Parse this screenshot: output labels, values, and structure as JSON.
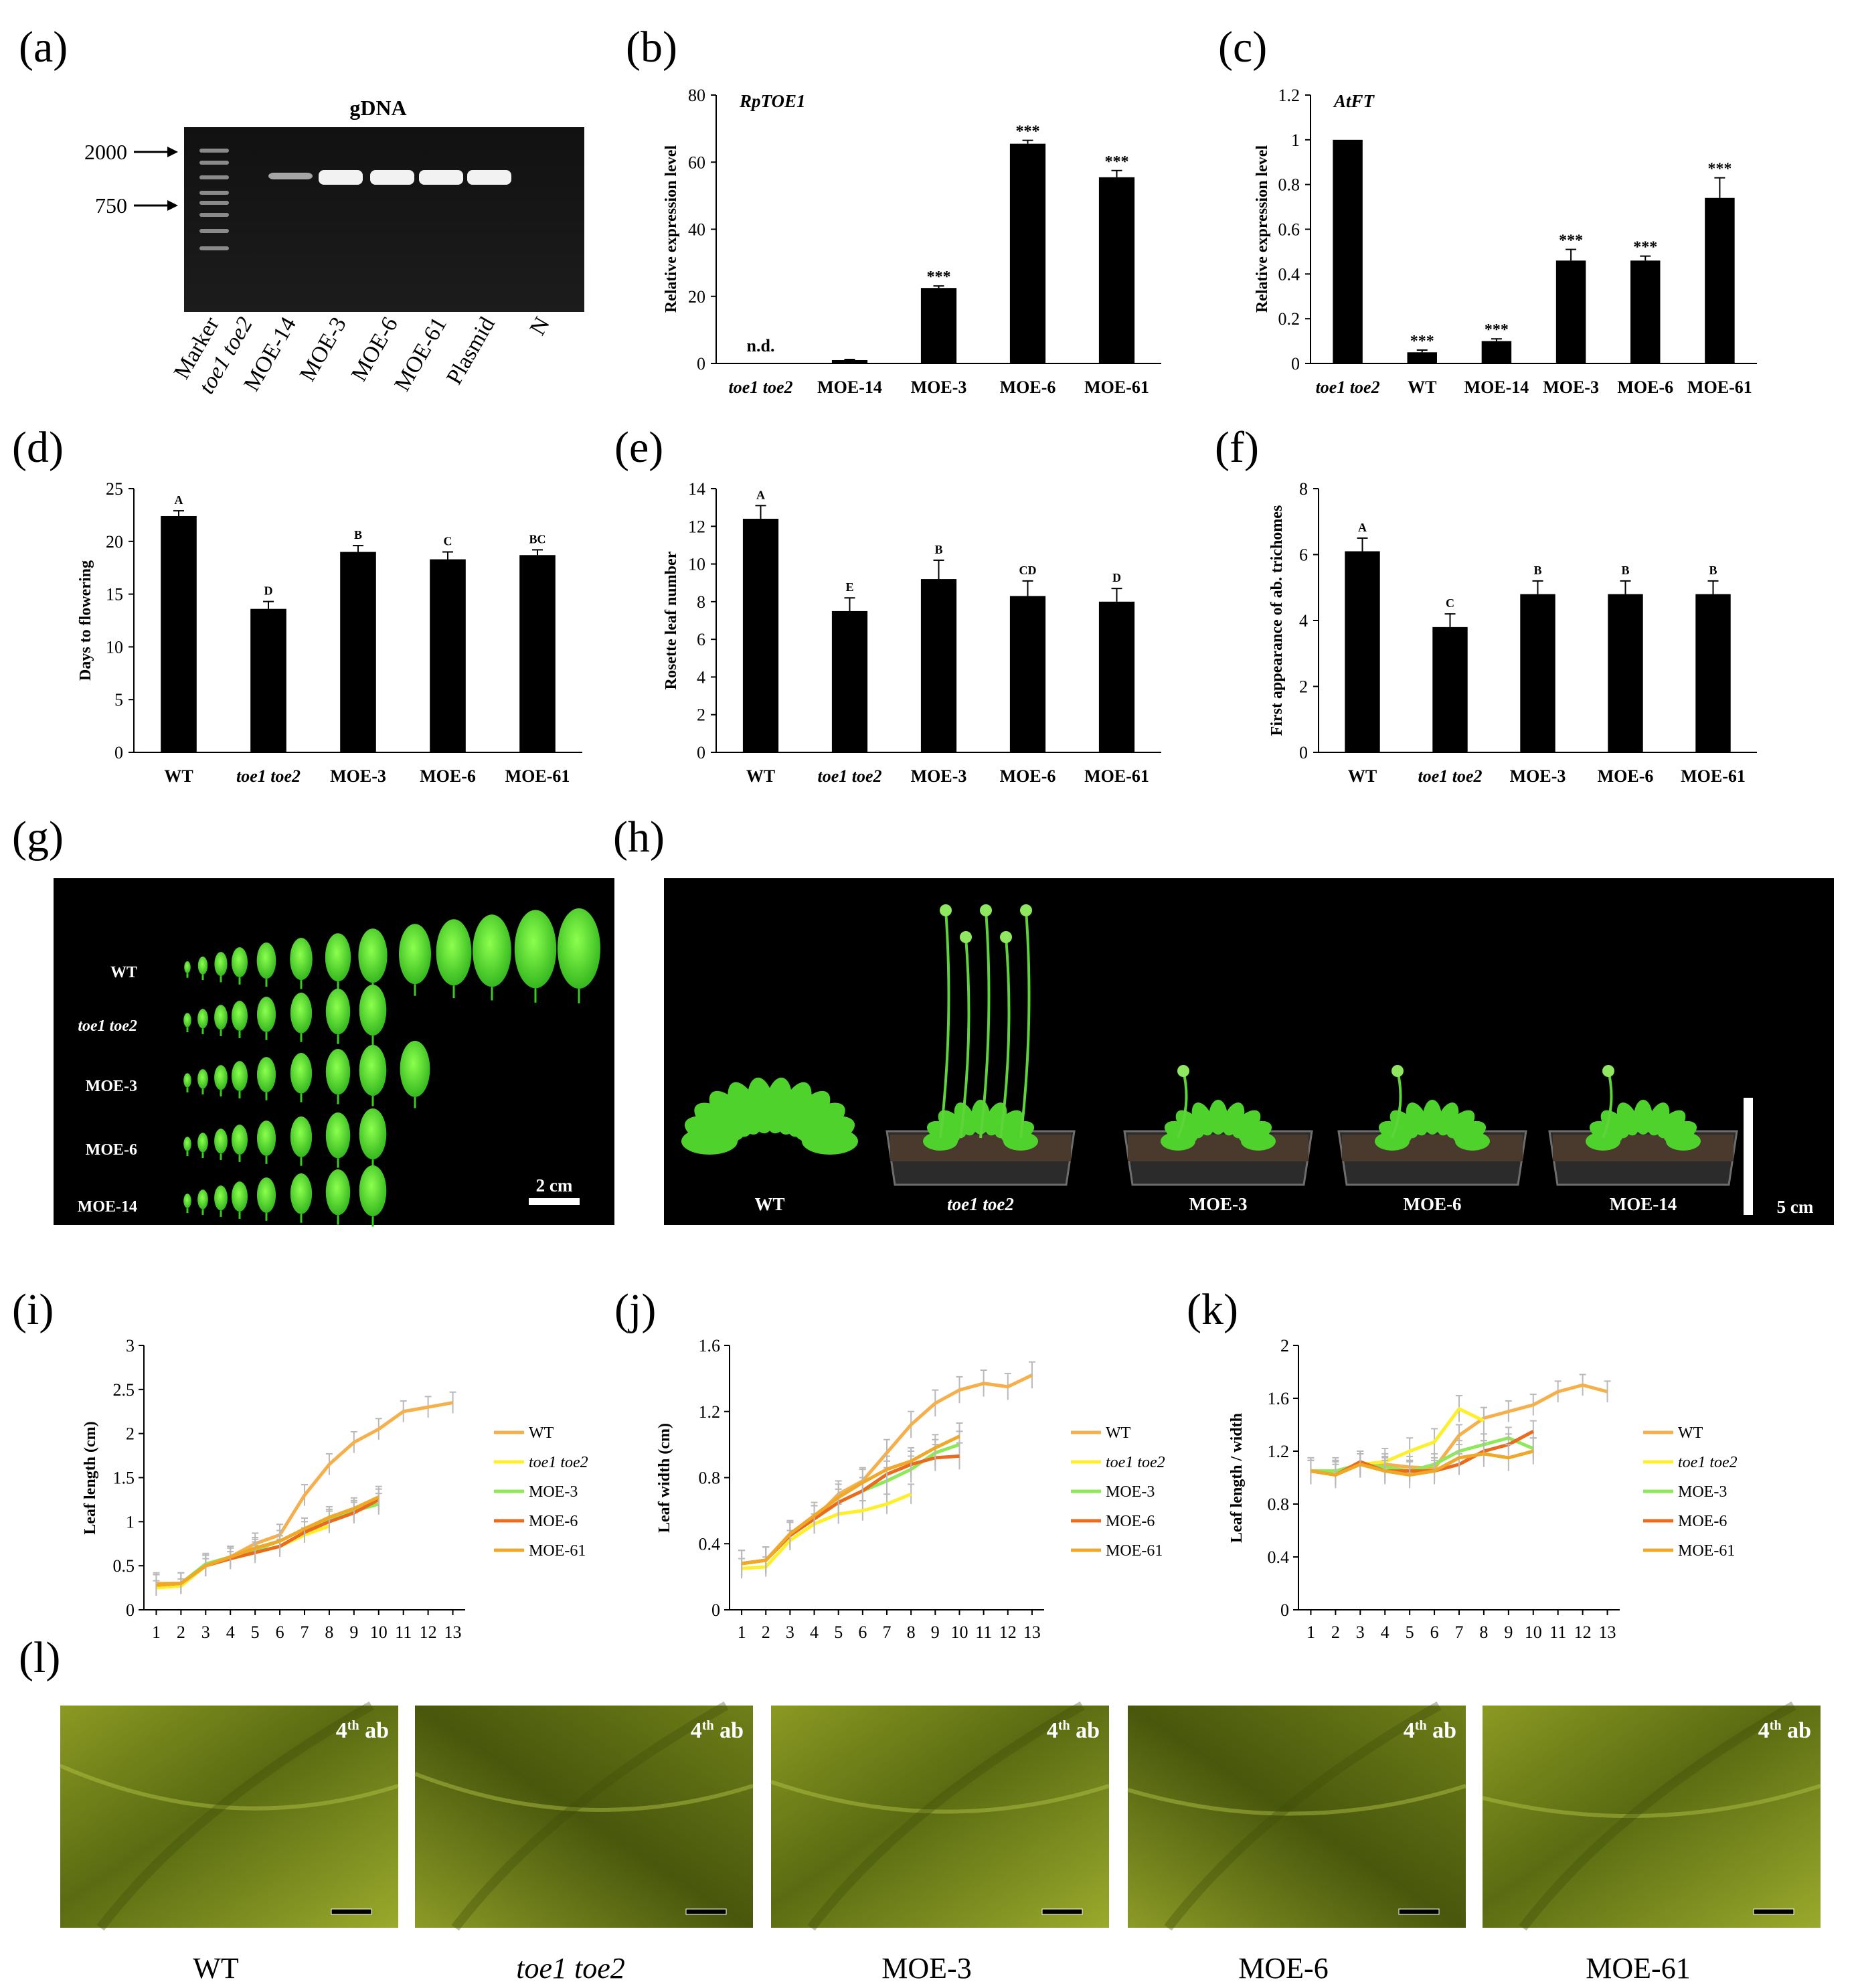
{
  "panel_labels": [
    "(a)",
    "(b)",
    "(c)",
    "(d)",
    "(e)",
    "(f)",
    "(g)",
    "(h)",
    "(i)",
    "(j)",
    "(k)",
    "(l)"
  ],
  "gel": {
    "title": "gDNA",
    "marker_sizes": [
      "2000",
      "750"
    ],
    "lanes": [
      "Marker",
      "toe1 toe2",
      "MOE-14",
      "MOE-3",
      "MOE-6",
      "MOE-61",
      "Plasmid",
      "N"
    ]
  },
  "leaf_series_panel": {
    "rows": [
      "WT",
      "toe1 toe2",
      "MOE-3",
      "MOE-6",
      "MOE-14"
    ],
    "leaf_counts": [
      13,
      8,
      9,
      8,
      8
    ],
    "scale_label": "2 cm"
  },
  "plants_panel": {
    "labels": [
      "WT",
      "toe1 toe2",
      "MOE-3",
      "MOE-6",
      "MOE-14"
    ],
    "scale_label": "5 cm"
  },
  "micrographs": {
    "inset_label": "4th ab",
    "inset_base": "4",
    "inset_sup": "th",
    "inset_suffix": " ab",
    "labels": [
      "WT",
      "toe1 toe2",
      "MOE-3",
      "MOE-6",
      "MOE-61"
    ]
  },
  "colors": {
    "bar": "#000000",
    "WT": "#f5b04b",
    "toe1 toe2": "#ffee2a",
    "MOE-3": "#8ee85a",
    "MOE-6": "#ea6a1e",
    "MOE-61": "#f0a828"
  },
  "chart_data": [
    {
      "panel": "(b)",
      "type": "bar",
      "annotation": "RpTOE1",
      "ylabel": "Relative expression level",
      "categories": [
        "toe1 toe2",
        "MOE-14",
        "MOE-3",
        "MOE-6",
        "MOE-61"
      ],
      "values": [
        0,
        1,
        22.5,
        65.5,
        55.5
      ],
      "errors": [
        0,
        0.2,
        0.6,
        1.0,
        2.0
      ],
      "labels": [
        "n.d.",
        "",
        "***",
        "***",
        "***"
      ],
      "ylim": [
        0,
        80
      ],
      "yticks": [
        "0",
        "20",
        "40",
        "60",
        "80"
      ]
    },
    {
      "panel": "(c)",
      "type": "bar",
      "annotation": "AtFT",
      "ylabel": "Relative expression level",
      "categories": [
        "toe1 toe2",
        "WT",
        "MOE-14",
        "MOE-3",
        "MOE-6",
        "MOE-61"
      ],
      "values": [
        1.0,
        0.05,
        0.1,
        0.46,
        0.46,
        0.74
      ],
      "errors": [
        0,
        0.01,
        0.01,
        0.05,
        0.02,
        0.09
      ],
      "labels": [
        "",
        "***",
        "***",
        "***",
        "***",
        "***"
      ],
      "ylim": [
        0,
        1.2
      ],
      "yticks": [
        "0",
        "0.2",
        "0.4",
        "0.6",
        "0.8",
        "1",
        "1.2"
      ]
    },
    {
      "panel": "(d)",
      "type": "bar",
      "ylabel": "Days to flowering",
      "categories": [
        "WT",
        "toe1 toe2",
        "MOE-3",
        "MOE-6",
        "MOE-61"
      ],
      "values": [
        22.4,
        13.6,
        19.0,
        18.3,
        18.7
      ],
      "errors": [
        0.5,
        0.7,
        0.6,
        0.7,
        0.5
      ],
      "labels": [
        "A",
        "D",
        "B",
        "C",
        "BC"
      ],
      "ylim": [
        0,
        25
      ],
      "yticks": [
        "0",
        "5",
        "10",
        "15",
        "20",
        "25"
      ]
    },
    {
      "panel": "(e)",
      "type": "bar",
      "ylabel": "Rosette leaf number",
      "categories": [
        "WT",
        "toe1 toe2",
        "MOE-3",
        "MOE-6",
        "MOE-61"
      ],
      "values": [
        12.4,
        7.5,
        9.2,
        8.3,
        8.0
      ],
      "errors": [
        0.7,
        0.7,
        1.0,
        0.8,
        0.7
      ],
      "labels": [
        "A",
        "E",
        "B",
        "CD",
        "D"
      ],
      "ylim": [
        0,
        14
      ],
      "yticks": [
        "0",
        "2",
        "4",
        "6",
        "8",
        "10",
        "12",
        "14"
      ]
    },
    {
      "panel": "(f)",
      "type": "bar",
      "ylabel": "First appearance of ab. trichomes",
      "categories": [
        "WT",
        "toe1 toe2",
        "MOE-3",
        "MOE-6",
        "MOE-61"
      ],
      "values": [
        6.1,
        3.8,
        4.8,
        4.8,
        4.8
      ],
      "errors": [
        0.4,
        0.4,
        0.4,
        0.4,
        0.4
      ],
      "labels": [
        "A",
        "C",
        "B",
        "B",
        "B"
      ],
      "ylim": [
        0,
        8
      ],
      "yticks": [
        "0",
        "2",
        "4",
        "6",
        "8"
      ]
    },
    {
      "panel": "(i)",
      "type": "line",
      "ylabel": "Leaf length (cm)",
      "ylim": [
        0,
        3
      ],
      "yticks": [
        "0",
        "0.5",
        "1",
        "1.5",
        "2",
        "2.5",
        "3"
      ],
      "xticks": [
        "1",
        "2",
        "3",
        "4",
        "5",
        "6",
        "7",
        "8",
        "9",
        "10",
        "11",
        "12",
        "13"
      ],
      "series": [
        {
          "name": "WT",
          "x": [
            1,
            2,
            3,
            4,
            5,
            6,
            7,
            8,
            9,
            10,
            11,
            12,
            13
          ],
          "values": [
            0.3,
            0.3,
            0.5,
            0.6,
            0.75,
            0.85,
            1.3,
            1.65,
            1.9,
            2.05,
            2.25,
            2.3,
            2.35
          ],
          "err": 0.12
        },
        {
          "name": "toe1 toe2",
          "x": [
            1,
            2,
            3,
            4,
            5,
            6,
            7,
            8
          ],
          "values": [
            0.25,
            0.27,
            0.5,
            0.58,
            0.65,
            0.72,
            0.85,
            0.95
          ],
          "err": 0.08
        },
        {
          "name": "MOE-3",
          "x": [
            1,
            2,
            3,
            4,
            5,
            6,
            7,
            8,
            9,
            10
          ],
          "values": [
            0.28,
            0.3,
            0.52,
            0.6,
            0.68,
            0.78,
            0.92,
            1.02,
            1.12,
            1.2
          ],
          "err": 0.12
        },
        {
          "name": "MOE-6",
          "x": [
            1,
            2,
            3,
            4,
            5,
            6,
            7,
            8,
            9,
            10
          ],
          "values": [
            0.28,
            0.3,
            0.5,
            0.58,
            0.65,
            0.72,
            0.88,
            1.0,
            1.1,
            1.25
          ],
          "err": 0.12
        },
        {
          "name": "MOE-61",
          "x": [
            1,
            2,
            3,
            4,
            5,
            6,
            7,
            8,
            9,
            10
          ],
          "values": [
            0.28,
            0.3,
            0.5,
            0.6,
            0.7,
            0.78,
            0.92,
            1.05,
            1.15,
            1.28
          ],
          "err": 0.12
        }
      ]
    },
    {
      "panel": "(j)",
      "type": "line",
      "ylabel": "Leaf width (cm)",
      "ylim": [
        0,
        1.6
      ],
      "yticks": [
        "0",
        "0.4",
        "0.8",
        "1.2",
        "1.6"
      ],
      "xticks": [
        "1",
        "2",
        "3",
        "4",
        "5",
        "6",
        "7",
        "8",
        "9",
        "10",
        "11",
        "12",
        "13"
      ],
      "series": [
        {
          "name": "WT",
          "x": [
            1,
            2,
            3,
            4,
            5,
            6,
            7,
            8,
            9,
            10,
            11,
            12,
            13
          ],
          "values": [
            0.28,
            0.3,
            0.45,
            0.55,
            0.7,
            0.78,
            0.95,
            1.12,
            1.25,
            1.33,
            1.37,
            1.35,
            1.42
          ],
          "err": 0.08
        },
        {
          "name": "toe1 toe2",
          "x": [
            1,
            2,
            3,
            4,
            5,
            6,
            7,
            8
          ],
          "values": [
            0.25,
            0.26,
            0.42,
            0.52,
            0.58,
            0.6,
            0.64,
            0.7
          ],
          "err": 0.06
        },
        {
          "name": "MOE-3",
          "x": [
            1,
            2,
            3,
            4,
            5,
            6,
            7,
            8,
            9,
            10
          ],
          "values": [
            0.28,
            0.3,
            0.45,
            0.55,
            0.65,
            0.72,
            0.78,
            0.85,
            0.95,
            1.0
          ],
          "err": 0.08
        },
        {
          "name": "MOE-6",
          "x": [
            1,
            2,
            3,
            4,
            5,
            6,
            7,
            8,
            9,
            10
          ],
          "values": [
            0.28,
            0.3,
            0.45,
            0.55,
            0.65,
            0.72,
            0.82,
            0.88,
            0.92,
            0.93
          ],
          "err": 0.08
        },
        {
          "name": "MOE-61",
          "x": [
            1,
            2,
            3,
            4,
            5,
            6,
            7,
            8,
            9,
            10
          ],
          "values": [
            0.28,
            0.3,
            0.46,
            0.57,
            0.68,
            0.77,
            0.85,
            0.9,
            0.98,
            1.05
          ],
          "err": 0.08
        }
      ]
    },
    {
      "panel": "(k)",
      "type": "line",
      "ylabel": "Leaf length / width",
      "ylim": [
        0,
        2
      ],
      "yticks": [
        "0",
        "0.4",
        "0.8",
        "1.2",
        "1.6",
        "2"
      ],
      "xticks": [
        "1",
        "2",
        "3",
        "4",
        "5",
        "6",
        "7",
        "8",
        "9",
        "10",
        "11",
        "12",
        "13"
      ],
      "series": [
        {
          "name": "WT",
          "x": [
            1,
            2,
            3,
            4,
            5,
            6,
            7,
            8,
            9,
            10,
            11,
            12,
            13
          ],
          "values": [
            1.05,
            1.05,
            1.1,
            1.1,
            1.08,
            1.07,
            1.32,
            1.45,
            1.5,
            1.55,
            1.65,
            1.7,
            1.65
          ],
          "err": 0.08
        },
        {
          "name": "toe1 toe2",
          "x": [
            1,
            2,
            3,
            4,
            5,
            6,
            7,
            8
          ],
          "values": [
            1.05,
            1.05,
            1.1,
            1.12,
            1.2,
            1.27,
            1.52,
            1.43
          ],
          "err": 0.1
        },
        {
          "name": "MOE-3",
          "x": [
            1,
            2,
            3,
            4,
            5,
            6,
            7,
            8,
            9,
            10
          ],
          "values": [
            1.05,
            1.05,
            1.1,
            1.08,
            1.05,
            1.1,
            1.2,
            1.25,
            1.3,
            1.22
          ],
          "err": 0.08
        },
        {
          "name": "MOE-6",
          "x": [
            1,
            2,
            3,
            4,
            5,
            6,
            7,
            8,
            9,
            10
          ],
          "values": [
            1.05,
            1.02,
            1.12,
            1.05,
            1.05,
            1.05,
            1.1,
            1.2,
            1.25,
            1.35
          ],
          "err": 0.08
        },
        {
          "name": "MOE-61",
          "x": [
            1,
            2,
            3,
            4,
            5,
            6,
            7,
            8,
            9,
            10
          ],
          "values": [
            1.05,
            1.02,
            1.1,
            1.05,
            1.02,
            1.05,
            1.15,
            1.18,
            1.15,
            1.2
          ],
          "err": 0.1
        }
      ]
    }
  ]
}
